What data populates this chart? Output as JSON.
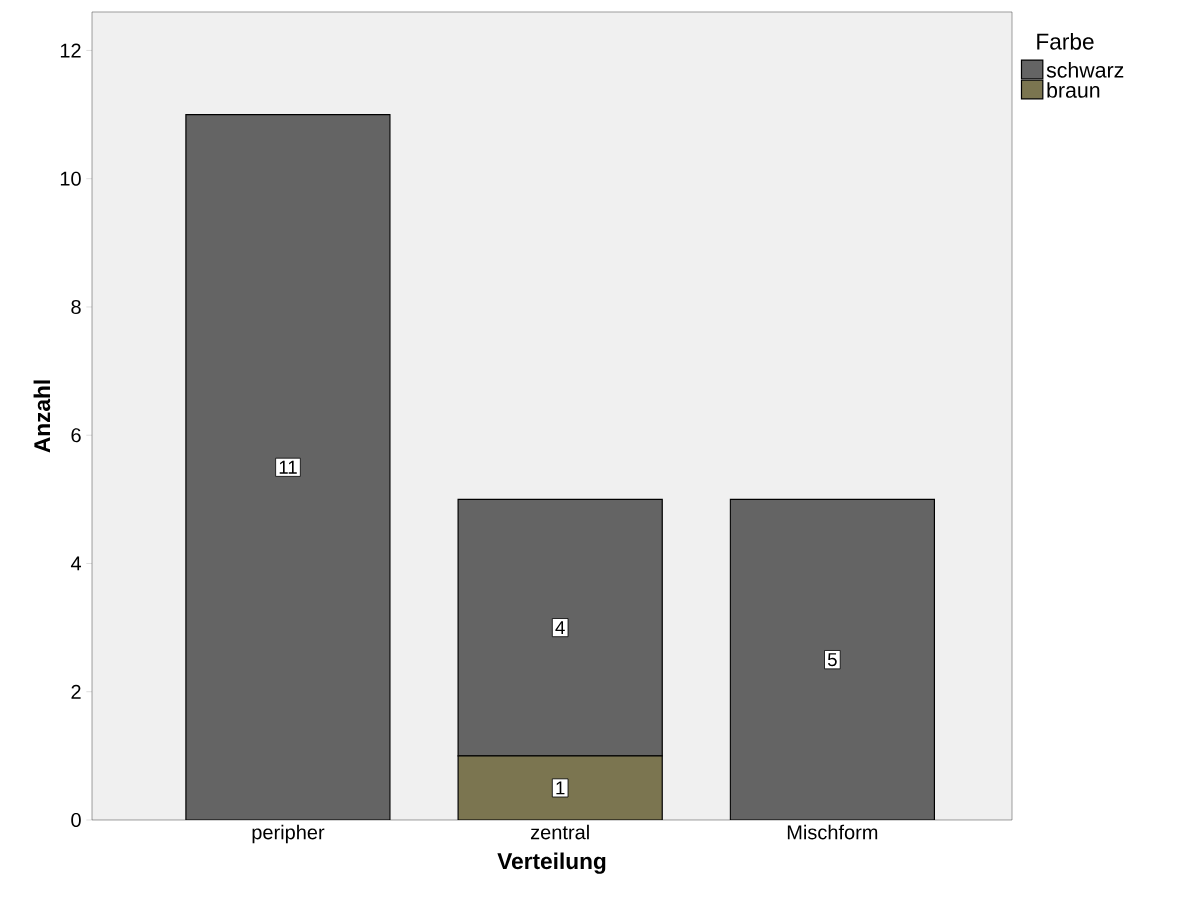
{
  "chart_data": {
    "type": "bar",
    "stacked": true,
    "xlabel": "Verteilung",
    "ylabel": "Anzahl",
    "legend_title": "Farbe",
    "legend": "top right",
    "categories": [
      "peripher",
      "zentral",
      "Mischform"
    ],
    "series": [
      {
        "name": "braun",
        "color": "#7b7550",
        "values": [
          null,
          1,
          null
        ]
      },
      {
        "name": "schwarz",
        "color": "#646464",
        "values": [
          11,
          4,
          5
        ]
      }
    ],
    "ylim": [
      0,
      12.6
    ],
    "yticks": [
      0,
      2,
      4,
      6,
      8,
      10,
      12
    ],
    "data_labels": true,
    "grid": false
  }
}
